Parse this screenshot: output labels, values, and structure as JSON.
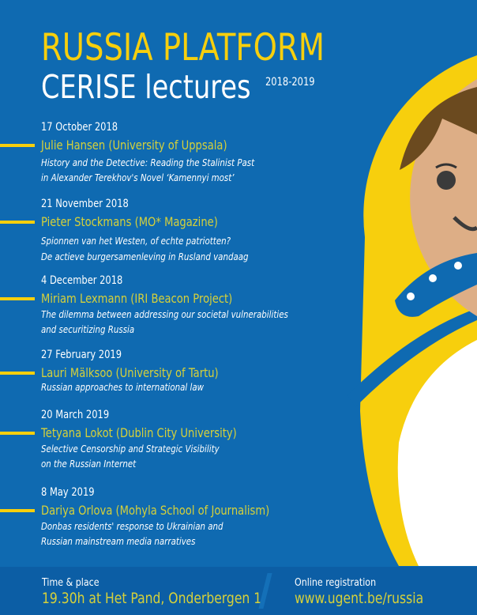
{
  "title": "RUSSIA PLATFORM",
  "subtitle": "CERISE lectures",
  "years": "2018-2019",
  "colors": {
    "background": "#0f6ab1",
    "accent": "#f7cf0d",
    "speaker": "#d6d13a",
    "footer": "#0c5ea5"
  },
  "lectures": [
    {
      "date": "17 October 2018",
      "speaker": "Julie Hansen (University of Uppsala)",
      "lines": [
        "History and the Detective: Reading the Stalinist Past",
        "in Alexander Terekhov's Novel ‘Kamennyi most’"
      ]
    },
    {
      "date": "21 November 2018",
      "speaker": "Pieter Stockmans (MO* Magazine)",
      "lines": [
        "Spionnen van het Westen, of echte patriotten?",
        "De actieve burgersamenleving in Rusland vandaag"
      ]
    },
    {
      "date": "4 December 2018",
      "speaker": "Miriam Lexmann (IRI Beacon Project)",
      "lines": [
        "The dilemma between addressing our societal vulnerabilities",
        "and securitizing Russia"
      ]
    },
    {
      "date": "27 February 2019",
      "speaker": "Lauri Mälksoo (University of Tartu)",
      "lines": [
        "Russian approaches to international law"
      ]
    },
    {
      "date": "20 March 2019",
      "speaker": "Tetyana Lokot (Dublin City University)",
      "lines": [
        "Selective Censorship and Strategic Visibility",
        "on the Russian Internet"
      ]
    },
    {
      "date": "8 May 2019",
      "speaker": "Dariya Orlova (Mohyla School of Journalism)",
      "lines": [
        "Donbas residents' response to Ukrainian and",
        "Russian mainstream media narratives"
      ]
    }
  ],
  "footer": {
    "time_label": "Time & place",
    "time_value": "19.30h at Het Pand, Onderbergen 1",
    "reg_label": "Online registration",
    "reg_link": "www.ugent.be/russia"
  }
}
